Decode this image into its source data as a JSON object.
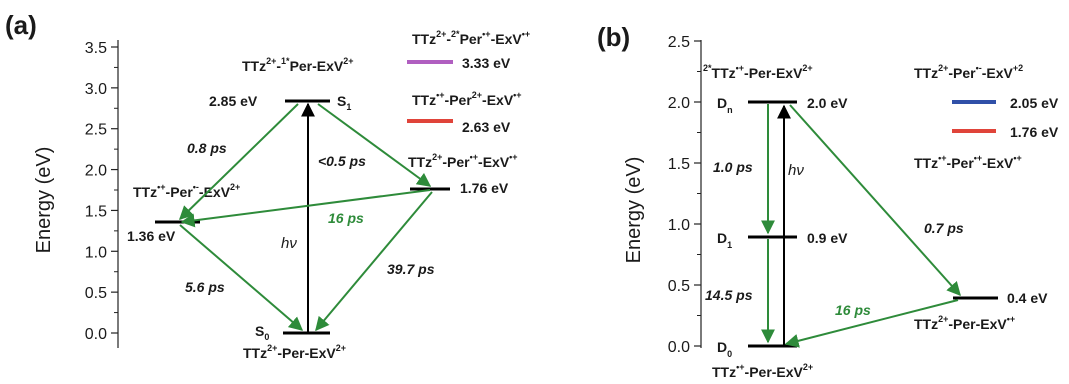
{
  "panel_a": {
    "label": "(a)",
    "ylabel": "Energy (eV)",
    "yticks": [
      "0.0",
      "0.5",
      "1.0",
      "1.5",
      "2.0",
      "2.5",
      "3.0",
      "3.5"
    ],
    "levels": {
      "s0": {
        "energy": 0.0,
        "name": "S",
        "sub": "0"
      },
      "s1": {
        "energy": 2.85,
        "value_label": "2.85 eV",
        "name": "S",
        "sub": "1"
      },
      "ct1": {
        "energy": 1.36,
        "value_label": "1.36 eV"
      },
      "ct2": {
        "energy": 1.76,
        "value_label": "1.76 eV"
      }
    },
    "states": {
      "s1_state": [
        "TTz",
        "2+",
        "-",
        "1*",
        "Per-ExV",
        "2+"
      ],
      "s0_state": [
        "TTz",
        "2+",
        "-Per-ExV",
        "2+"
      ],
      "ct1_state": [
        "TTz",
        "•+",
        "-Per",
        "•-",
        "-ExV",
        "2+"
      ],
      "ct2_state": [
        "TTz",
        "2+",
        "-Per",
        "•+",
        "-ExV",
        "•+"
      ]
    },
    "legend": [
      {
        "title": [
          "TTz",
          "2+",
          "-",
          "2*",
          "Per",
          "•+",
          "-ExV",
          "•+"
        ],
        "value": "3.33 eV",
        "color": "#b05fc0"
      },
      {
        "title": [
          "TTz",
          "•+",
          "-Per",
          "2+",
          "-ExV",
          "•+"
        ],
        "value": "2.63 eV",
        "color": "#e0443a"
      }
    ],
    "times": {
      "t_s1_ct1": "0.8 ps",
      "t_s1_ct2": "<0.5 ps",
      "t_ct2_ct1": "16 ps",
      "t_ct1_s0": "5.6 ps",
      "t_ct2_s0": "39.7 ps"
    },
    "hv": "hν"
  },
  "panel_b": {
    "label": "(b)",
    "ylabel": "Energy (eV)",
    "yticks": [
      "0.0",
      "0.5",
      "1.0",
      "1.5",
      "2.0",
      "2.5"
    ],
    "levels": {
      "d0": {
        "energy": 0.0,
        "name": "D",
        "sub": "0"
      },
      "d1": {
        "energy": 0.9,
        "value_label": "0.9 eV",
        "name": "D",
        "sub": "1"
      },
      "dn": {
        "energy": 2.0,
        "value_label": "2.0 eV",
        "name": "D",
        "sub": "n"
      },
      "ct": {
        "energy": 0.4,
        "value_label": "0.4 eV"
      }
    },
    "states": {
      "dn_state": [
        "2*",
        "TTz",
        "•+",
        "-Per-ExV",
        "2+"
      ],
      "d0_state": [
        "TTz",
        "•+",
        "-Per-ExV",
        "2+"
      ],
      "ct_state": [
        "TTz",
        "2+",
        "-Per-ExV",
        "•+"
      ]
    },
    "legend": [
      {
        "value": "2.05 eV",
        "color": "#3050a8"
      },
      {
        "value": "1.76 eV",
        "color": "#e0443a"
      }
    ],
    "legend_top_state": [
      "TTz",
      "2+",
      "-Per",
      "•-",
      "-ExV",
      "+2"
    ],
    "legend_bottom_state": [
      "TTz",
      "•+",
      "-Per",
      "•+",
      "-ExV",
      "•+"
    ],
    "times": {
      "t_dn_d1": "1.0 ps",
      "t_d1_d0": "14.5 ps",
      "t_dn_ct": "0.7 ps",
      "t_ct_d0": "16 ps"
    },
    "hv": "hν"
  },
  "colors": {
    "arrow": "#2e8b3a",
    "level": "#000000",
    "axis": "#222222",
    "time_green": "#2e8b3a"
  }
}
